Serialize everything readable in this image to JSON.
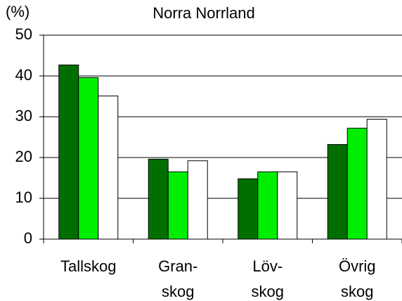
{
  "chart_data": {
    "type": "bar",
    "title": "Norra Norrland",
    "ylabel": "(%)",
    "categories": [
      "Tallskog",
      "Gran-\nskog",
      "Löv-\nskog",
      "Övrig\nskog"
    ],
    "series": [
      {
        "color": "#006f00",
        "values": [
          42.7,
          19.6,
          14.8,
          23.2
        ]
      },
      {
        "color": "#00ee00",
        "values": [
          39.6,
          16.5,
          16.5,
          27.2
        ]
      },
      {
        "color": "#ffffff",
        "values": [
          35.1,
          19.2,
          16.5,
          29.4
        ]
      }
    ],
    "ylim": [
      0,
      50
    ],
    "yticks": [
      0,
      10,
      20,
      30,
      40,
      50
    ],
    "grid": true
  }
}
